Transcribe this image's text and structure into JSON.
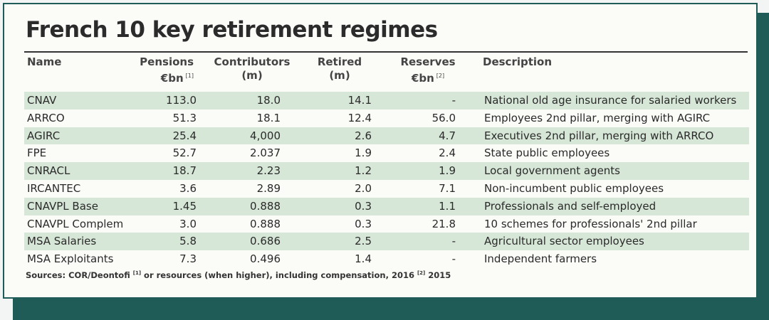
{
  "title": "French 10 key retirement regimes",
  "headers": {
    "name": "Name",
    "pensions_1": "Pensions",
    "pensions_2": "€bn",
    "pensions_note": "[1]",
    "contributors_1": "Contributors",
    "contributors_2": "(m)",
    "retired_1": "Retired",
    "retired_2": "(m)",
    "reserves_1": "Reserves",
    "reserves_2": "€bn",
    "reserves_note": "[2]",
    "description": "Description"
  },
  "rows": [
    {
      "name": "CNAV",
      "pensions": "113.0",
      "contributors": "18.0",
      "retired": "14.1",
      "reserves": "-",
      "description": "National old age insurance for salaried workers"
    },
    {
      "name": "ARRCO",
      "pensions": "51.3",
      "contributors": "18.1",
      "retired": "12.4",
      "reserves": "56.0",
      "description": "Employees 2nd pillar, merging with AGIRC"
    },
    {
      "name": "AGIRC",
      "pensions": "25.4",
      "contributors": "4,000",
      "retired": "2.6",
      "reserves": "4.7",
      "description": "Executives 2nd pillar, merging with ARRCO"
    },
    {
      "name": "FPE",
      "pensions": "52.7",
      "contributors": "2.037",
      "retired": "1.9",
      "reserves": "2.4",
      "description": "State public employees"
    },
    {
      "name": "CNRACL",
      "pensions": "18.7",
      "contributors": "2.23",
      "retired": "1.2",
      "reserves": "1.9",
      "description": "Local government agents"
    },
    {
      "name": "IRCANTEC",
      "pensions": "3.6",
      "contributors": "2.89",
      "retired": "2.0",
      "reserves": "7.1",
      "description": "Non-incumbent public employees"
    },
    {
      "name": "CNAVPL Base",
      "pensions": "1.45",
      "contributors": "0.888",
      "retired": "0.3",
      "reserves": "1.1",
      "description": "Professionals and self-employed"
    },
    {
      "name": "CNAVPL Complem",
      "pensions": "3.0",
      "contributors": "0.888",
      "retired": "0.3",
      "reserves": "21.8",
      "description": "10 schemes for professionals' 2nd pillar"
    },
    {
      "name": "MSA Salaries",
      "pensions": "5.8",
      "contributors": "0.686",
      "retired": "2.5",
      "reserves": "-",
      "description": "Agricultural sector employees"
    },
    {
      "name": "MSA Exploitants",
      "pensions": "7.3",
      "contributors": "0.496",
      "retired": "1.4",
      "reserves": "-",
      "description": "Independent farmers"
    }
  ],
  "sources": {
    "prefix": "Sources: COR/Deontofi",
    "note1": "[1]",
    "mid": "or resources (when higher), including compensation, 2016",
    "note2": "[2]",
    "suffix": "2015"
  },
  "colors": {
    "border": "#1f5c58",
    "shade": "#d7e7d7",
    "background": "#fbfbf8"
  }
}
